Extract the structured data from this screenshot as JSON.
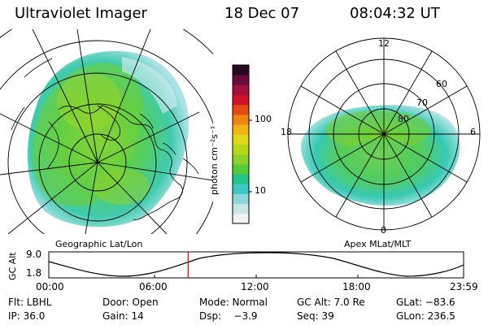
{
  "header": {
    "instrument": "Ultraviolet Imager",
    "date": "18 Dec 07",
    "time": "08:04:32 UT"
  },
  "left_map": {
    "caption": "Geographic Lat/Lon"
  },
  "right_map": {
    "caption": "Apex MLat/MLT",
    "mlt_labels": {
      "top": "12",
      "left": "18",
      "right": "6",
      "bottom": "0"
    },
    "lat_labels": [
      "60",
      "70",
      "80"
    ]
  },
  "colorbar": {
    "unit": "photon cm⁻²s⁻¹",
    "tick_100": "100",
    "tick_10": "10",
    "colors": [
      "#f0f4f4",
      "#c8e6ea",
      "#8fd6dc",
      "#3dc8c8",
      "#22c48a",
      "#56cc3a",
      "#8ed12a",
      "#b8d816",
      "#e0d818",
      "#f0b414",
      "#f08410",
      "#e64a14",
      "#d01428",
      "#a2103c",
      "#6a0c3a",
      "#260824"
    ]
  },
  "orbit": {
    "axis_label": "GC Alt",
    "y_top": "9.0",
    "y_bottom": "1.8",
    "time_ticks": [
      "00:00",
      "06:00",
      "12:00",
      "18:00",
      "23:59"
    ],
    "current_time_fraction": 0.336,
    "marker_color": "#dd0000"
  },
  "footer": {
    "row1": {
      "filter": "Flt: LBHL",
      "door": "Door: Open",
      "mode": "Mode: Normal",
      "gc_alt": "GC Alt: 7.0 Re",
      "glat": "GLat: −83.6"
    },
    "row2": {
      "ip": "IP: 36.0",
      "gain": "Gain: 14",
      "dsp": "Dsp:    −3.9",
      "seq": "Seq: 39",
      "glon": "GLon: 236.5"
    }
  }
}
